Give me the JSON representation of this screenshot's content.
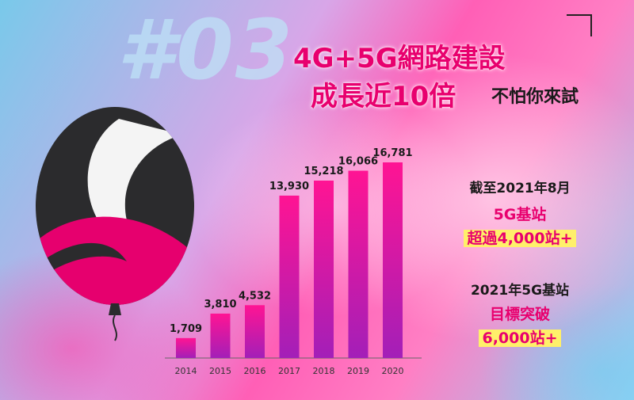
{
  "heading": {
    "number": "#03",
    "line1": "4G+5G網路建設",
    "line2": "成長近10倍",
    "tagline": "不怕你來試"
  },
  "info": {
    "block1_line1": "截至2021年8月",
    "block1_line2": "5G基站",
    "block1_line3": "超過4,000站+",
    "block2_line1": "2021年5G基站",
    "block2_line2": "目標突破",
    "block2_line3": "6,000站+"
  },
  "colors": {
    "accent": "#e8006e",
    "bar_top": "#ff1493",
    "bar_bottom": "#a31fb8",
    "highlight": "#fff06a"
  },
  "chart_data": {
    "type": "bar",
    "categories": [
      "2014",
      "2015",
      "2016",
      "2017",
      "2018",
      "2019",
      "2020"
    ],
    "values": [
      1709,
      3810,
      4532,
      13930,
      15218,
      16066,
      16781
    ],
    "value_labels": [
      "1,709",
      "3,810",
      "4,532",
      "13,930",
      "15,218",
      "16,066",
      "16,781"
    ],
    "title": "",
    "xlabel": "",
    "ylabel": "",
    "grid": false,
    "ylim": [
      0,
      17000
    ]
  }
}
